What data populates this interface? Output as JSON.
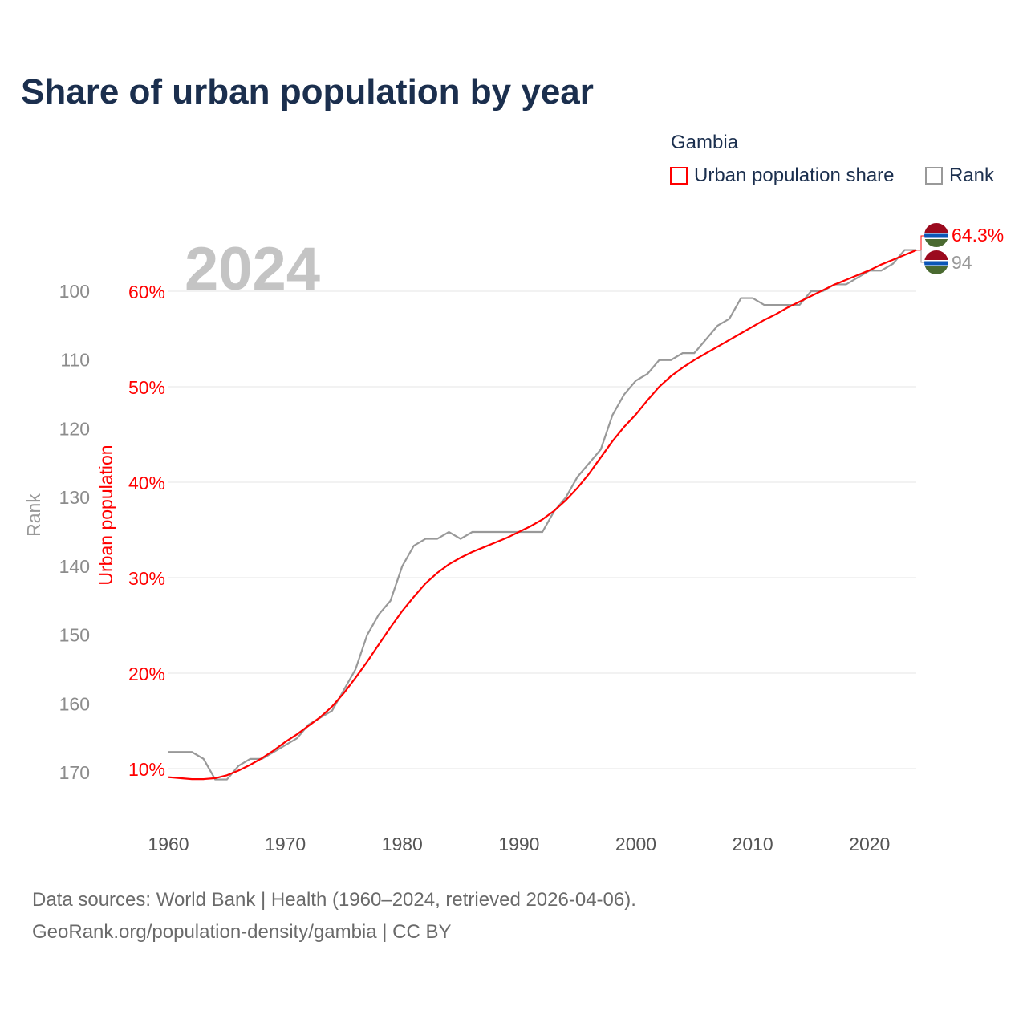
{
  "chart_data": {
    "type": "line",
    "title": "Share of urban population by year",
    "legend": {
      "title": "Gambia",
      "placement": "top-right",
      "entries": [
        {
          "name": "Urban population share",
          "color": "#ff0000"
        },
        {
          "name": "Rank",
          "color": "#999999"
        }
      ]
    },
    "current_year_label": "2024",
    "x": [
      1960,
      1961,
      1962,
      1963,
      1964,
      1965,
      1966,
      1967,
      1968,
      1969,
      1970,
      1971,
      1972,
      1973,
      1974,
      1975,
      1976,
      1977,
      1978,
      1979,
      1980,
      1981,
      1982,
      1983,
      1984,
      1985,
      1986,
      1987,
      1988,
      1989,
      1990,
      1991,
      1992,
      1993,
      1994,
      1995,
      1996,
      1997,
      1998,
      1999,
      2000,
      2001,
      2002,
      2003,
      2004,
      2005,
      2006,
      2007,
      2008,
      2009,
      2010,
      2011,
      2012,
      2013,
      2014,
      2015,
      2016,
      2017,
      2018,
      2019,
      2020,
      2021,
      2022,
      2023,
      2024
    ],
    "series": [
      {
        "name": "Urban population share",
        "axis": "left-inner",
        "unit": "%",
        "color": "#ff0000",
        "values": [
          9.1,
          9.0,
          8.9,
          8.9,
          9.0,
          9.3,
          9.8,
          10.4,
          11.1,
          11.9,
          12.8,
          13.6,
          14.5,
          15.4,
          16.5,
          17.9,
          19.5,
          21.2,
          23.0,
          24.8,
          26.5,
          28.0,
          29.4,
          30.5,
          31.4,
          32.1,
          32.7,
          33.2,
          33.7,
          34.2,
          34.8,
          35.4,
          36.1,
          37.0,
          38.1,
          39.4,
          40.9,
          42.6,
          44.3,
          45.8,
          47.1,
          48.6,
          50.0,
          51.1,
          52.0,
          52.8,
          53.5,
          54.2,
          54.9,
          55.6,
          56.3,
          57.0,
          57.6,
          58.3,
          58.9,
          59.5,
          60.1,
          60.7,
          61.2,
          61.7,
          62.2,
          62.8,
          63.3,
          63.8,
          64.3
        ],
        "end_label": "64.3%"
      },
      {
        "name": "Rank",
        "axis": "left-outer",
        "color": "#999999",
        "values": [
          167,
          167,
          167,
          168,
          171,
          171,
          169,
          168,
          168,
          167,
          166,
          165,
          163,
          162,
          161,
          158,
          155,
          150,
          147,
          145,
          140,
          137,
          136,
          136,
          135,
          136,
          135,
          135,
          135,
          135,
          135,
          135,
          135,
          132,
          130,
          127,
          125,
          123,
          118,
          115,
          113,
          112,
          110,
          110,
          109,
          109,
          107,
          105,
          104,
          101,
          101,
          102,
          102,
          102,
          102,
          100,
          100,
          99,
          99,
          98,
          97,
          97,
          96,
          94,
          94
        ],
        "end_label": "94"
      }
    ],
    "xticks": [
      "1960",
      "1970",
      "1980",
      "1990",
      "2000",
      "2010",
      "2020"
    ],
    "yticks_share": [
      "10%",
      "20%",
      "30%",
      "40%",
      "50%",
      "60%"
    ],
    "yticks_rank": [
      "100",
      "110",
      "120",
      "130",
      "140",
      "150",
      "160",
      "170"
    ],
    "ylabel_share": "Urban population",
    "ylabel_rank": "Rank",
    "xlim": [
      1960,
      2024
    ],
    "ylim_share": [
      10,
      60
    ],
    "ylim_rank": [
      100,
      170
    ],
    "grid": true
  },
  "footer": {
    "line1": "Data sources: World Bank | Health (1960–2024, retrieved 2026-04-06).",
    "line2": "GeoRank.org/population-density/gambia | CC BY"
  }
}
